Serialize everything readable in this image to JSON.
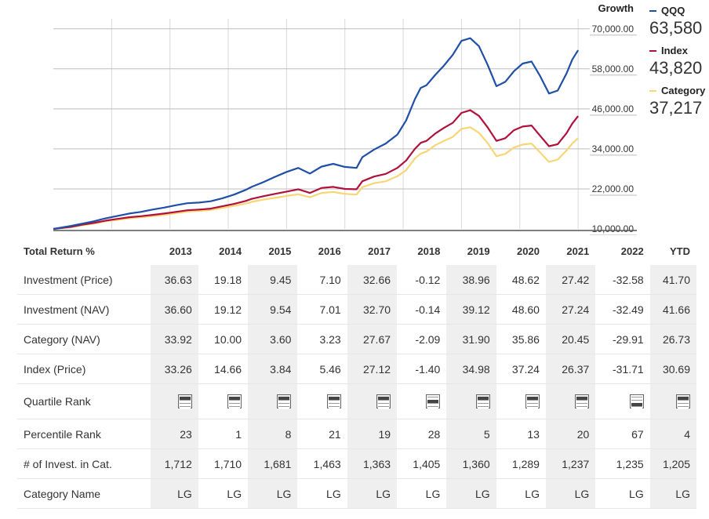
{
  "chart_data": {
    "type": "line",
    "title": "Growth",
    "ylim": [
      10000,
      73000
    ],
    "y_ticks": [
      70000,
      58000,
      46000,
      34000,
      22000,
      10000
    ],
    "y_tick_labels": [
      "70,000.00",
      "58,000.00",
      "46,000.00",
      "34,000.00",
      "22,000.00",
      "10,000.00"
    ],
    "x_domain": [
      2012.7,
      2021.9
    ],
    "x_grid": [
      2013.7,
      2014.7,
      2015.7,
      2016.7,
      2017.7,
      2018.7,
      2019.7,
      2020.7,
      2021.7
    ],
    "x": [
      2012.7,
      2013.0,
      2013.2,
      2013.4,
      2013.6,
      2013.8,
      2014.0,
      2014.2,
      2014.4,
      2014.6,
      2014.8,
      2015.0,
      2015.2,
      2015.4,
      2015.6,
      2015.8,
      2016.0,
      2016.1,
      2016.3,
      2016.5,
      2016.7,
      2016.9,
      2017.1,
      2017.3,
      2017.5,
      2017.7,
      2017.9,
      2018.0,
      2018.2,
      2018.4,
      2018.6,
      2018.75,
      2018.9,
      2019.0,
      2019.1,
      2019.25,
      2019.4,
      2019.55,
      2019.7,
      2019.85,
      2020.0,
      2020.15,
      2020.3,
      2020.45,
      2020.6,
      2020.75,
      2020.9,
      2021.05,
      2021.2,
      2021.35,
      2021.5,
      2021.6,
      2021.7
    ],
    "series": [
      {
        "name": "QQQ",
        "color": "#1f4fa6",
        "last_value": "63,580",
        "values": [
          10000,
          10900,
          11600,
          12300,
          13200,
          13900,
          14600,
          15100,
          15800,
          16400,
          17100,
          17700,
          17900,
          18300,
          19200,
          20300,
          21700,
          22600,
          24000,
          25600,
          27100,
          28300,
          26600,
          28700,
          29500,
          28600,
          28300,
          31500,
          33800,
          35600,
          38300,
          42500,
          48900,
          52300,
          53100,
          56200,
          59000,
          62200,
          66400,
          67200,
          64800,
          59100,
          52800,
          54100,
          57300,
          59600,
          60200,
          55800,
          50600,
          51500,
          56600,
          60800,
          63580
        ]
      },
      {
        "name": "Index",
        "color": "#b0103c",
        "last_value": "43,820",
        "values": [
          10000,
          10600,
          11300,
          11800,
          12500,
          13000,
          13500,
          13800,
          14200,
          14600,
          15100,
          15600,
          15800,
          16100,
          16800,
          17500,
          18400,
          19000,
          19800,
          20500,
          21200,
          21900,
          20800,
          22300,
          22600,
          22000,
          21900,
          24300,
          25700,
          26500,
          28300,
          30500,
          34000,
          35800,
          36400,
          38600,
          40300,
          41800,
          44800,
          45600,
          43900,
          40400,
          36400,
          37200,
          39600,
          40700,
          41000,
          37900,
          34800,
          35400,
          38700,
          41600,
          43820
        ]
      },
      {
        "name": "Category",
        "color": "#f7d675",
        "last_value": "37,217",
        "values": [
          10000,
          10500,
          11100,
          11600,
          12300,
          12700,
          13200,
          13500,
          13800,
          14200,
          14700,
          15200,
          15400,
          15700,
          16300,
          16900,
          17600,
          18100,
          18800,
          19300,
          19900,
          20400,
          19500,
          20800,
          21100,
          20500,
          20300,
          22500,
          23700,
          24300,
          25800,
          27600,
          31100,
          32600,
          33200,
          35100,
          36400,
          37600,
          40000,
          40500,
          38800,
          35700,
          31800,
          32500,
          34400,
          35300,
          35600,
          32900,
          30100,
          30800,
          33500,
          35600,
          37217
        ]
      }
    ]
  },
  "table": {
    "header_label": "Total Return %",
    "years": [
      "2013",
      "2014",
      "2015",
      "2016",
      "2017",
      "2018",
      "2019",
      "2020",
      "2021",
      "2022",
      "YTD"
    ],
    "rows": [
      {
        "label": "Investment (Price)",
        "values": [
          "36.63",
          "19.18",
          "9.45",
          "7.10",
          "32.66",
          "-0.12",
          "38.96",
          "48.62",
          "27.42",
          "-32.58",
          "41.70"
        ]
      },
      {
        "label": "Investment (NAV)",
        "values": [
          "36.60",
          "19.12",
          "9.54",
          "7.01",
          "32.70",
          "-0.14",
          "39.12",
          "48.60",
          "27.24",
          "-32.49",
          "41.66"
        ]
      },
      {
        "label": "Category (NAV)",
        "values": [
          "33.92",
          "10.00",
          "3.60",
          "3.23",
          "27.67",
          "-2.09",
          "31.90",
          "35.86",
          "20.45",
          "-29.91",
          "26.73"
        ]
      },
      {
        "label": "Index (Price)",
        "values": [
          "33.26",
          "14.66",
          "3.84",
          "5.46",
          "27.12",
          "-1.40",
          "34.98",
          "37.24",
          "26.37",
          "-31.71",
          "30.69"
        ]
      }
    ],
    "quartile_label": "Quartile Rank",
    "quartiles": [
      1,
      1,
      1,
      1,
      1,
      2,
      1,
      1,
      1,
      3,
      1
    ],
    "percentile_label": "Percentile Rank",
    "percentiles": [
      "23",
      "1",
      "8",
      "21",
      "19",
      "28",
      "5",
      "13",
      "20",
      "67",
      "4"
    ],
    "count_label": "# of Invest. in Cat.",
    "counts": [
      "1,712",
      "1,710",
      "1,681",
      "1,463",
      "1,363",
      "1,405",
      "1,360",
      "1,289",
      "1,237",
      "1,235",
      "1,205"
    ],
    "catname_label": "Category Name",
    "catnames": [
      "LG",
      "LG",
      "LG",
      "LG",
      "LG",
      "LG",
      "LG",
      "LG",
      "LG",
      "LG",
      "LG"
    ]
  }
}
